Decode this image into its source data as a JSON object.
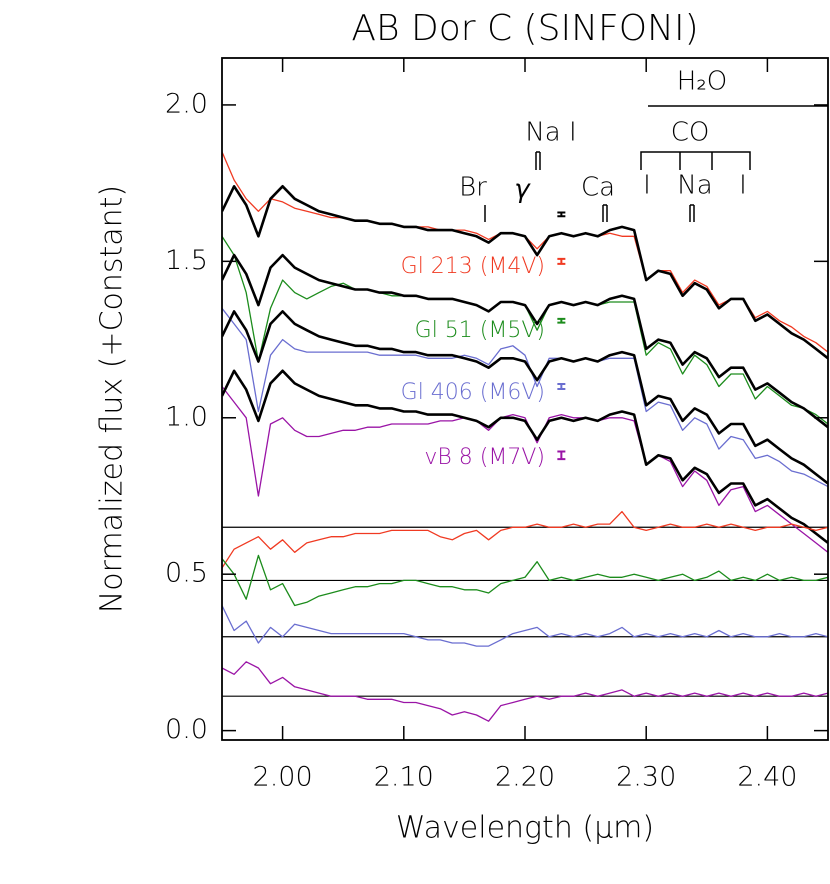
{
  "chart_data": {
    "type": "line",
    "title": "AB Dor C (SINFONI)",
    "x_label": "Wavelength (μm)",
    "y_label": "Normalized flux (+Constant)",
    "xlim": [
      1.95,
      2.45
    ],
    "ylim": [
      -0.03,
      2.15
    ],
    "xticks": [
      {
        "value": 2.0,
        "label": "2.00"
      },
      {
        "value": 2.1,
        "label": "2.10"
      },
      {
        "value": 2.2,
        "label": "2.20"
      },
      {
        "value": 2.3,
        "label": "2.30"
      },
      {
        "value": 2.4,
        "label": "2.40"
      }
    ],
    "yticks": [
      {
        "value": 0,
        "label": "0.0"
      },
      {
        "value": 0.5,
        "label": "0.5"
      },
      {
        "value": 1,
        "label": "1.0"
      },
      {
        "value": 1.5,
        "label": "1.5"
      },
      {
        "value": 2,
        "label": "2.0"
      }
    ],
    "x": [
      1.95,
      1.96,
      1.97,
      1.98,
      1.99,
      2.0,
      2.01,
      2.02,
      2.03,
      2.04,
      2.05,
      2.06,
      2.07,
      2.08,
      2.09,
      2.1,
      2.11,
      2.12,
      2.13,
      2.14,
      2.15,
      2.16,
      2.17,
      2.18,
      2.19,
      2.2,
      2.21,
      2.22,
      2.23,
      2.24,
      2.25,
      2.26,
      2.27,
      2.28,
      2.29,
      2.3,
      2.31,
      2.32,
      2.33,
      2.34,
      2.35,
      2.36,
      2.37,
      2.38,
      2.39,
      2.4,
      2.41,
      2.42,
      2.43,
      2.44,
      2.45
    ],
    "series": [
      {
        "name": "Gl 213 (M4V)",
        "color": "#f03a22",
        "values": [
          1.85,
          1.76,
          1.7,
          1.66,
          1.7,
          1.69,
          1.67,
          1.66,
          1.65,
          1.64,
          1.64,
          1.63,
          1.63,
          1.62,
          1.62,
          1.61,
          1.61,
          1.61,
          1.6,
          1.6,
          1.6,
          1.59,
          1.57,
          1.59,
          1.59,
          1.58,
          1.54,
          1.58,
          1.59,
          1.58,
          1.59,
          1.58,
          1.59,
          1.58,
          1.58,
          1.44,
          1.47,
          1.47,
          1.4,
          1.44,
          1.42,
          1.36,
          1.38,
          1.38,
          1.32,
          1.34,
          1.31,
          1.29,
          1.26,
          1.24,
          1.21
        ]
      },
      {
        "name": "Gl 51 (M5V)",
        "color": "#1c8c1c",
        "values": [
          1.58,
          1.52,
          1.4,
          1.18,
          1.35,
          1.44,
          1.4,
          1.38,
          1.4,
          1.42,
          1.43,
          1.41,
          1.41,
          1.4,
          1.39,
          1.39,
          1.39,
          1.38,
          1.38,
          1.38,
          1.37,
          1.36,
          1.34,
          1.37,
          1.37,
          1.36,
          1.28,
          1.36,
          1.37,
          1.36,
          1.37,
          1.36,
          1.37,
          1.37,
          1.37,
          1.2,
          1.24,
          1.22,
          1.14,
          1.2,
          1.17,
          1.1,
          1.14,
          1.14,
          1.06,
          1.1,
          1.07,
          1.04,
          1.03,
          1.01,
          0.98
        ]
      },
      {
        "name": "Gl 406 (M6V)",
        "color": "#6a6ed0",
        "values": [
          1.35,
          1.3,
          1.25,
          1.02,
          1.2,
          1.25,
          1.22,
          1.21,
          1.21,
          1.21,
          1.21,
          1.21,
          1.21,
          1.2,
          1.2,
          1.2,
          1.2,
          1.19,
          1.19,
          1.19,
          1.2,
          1.19,
          1.17,
          1.22,
          1.23,
          1.2,
          1.1,
          1.19,
          1.19,
          1.18,
          1.19,
          1.18,
          1.19,
          1.19,
          1.19,
          1.02,
          1.05,
          1.04,
          0.96,
          1.0,
          0.98,
          0.9,
          0.94,
          0.93,
          0.87,
          0.88,
          0.86,
          0.83,
          0.82,
          0.8,
          0.78
        ]
      },
      {
        "name": "vB 8 (M7V)",
        "color": "#9a14a6",
        "values": [
          1.1,
          1.05,
          1.0,
          0.75,
          0.98,
          1.0,
          0.96,
          0.94,
          0.94,
          0.95,
          0.96,
          0.96,
          0.97,
          0.97,
          0.98,
          0.98,
          0.98,
          0.98,
          0.99,
          0.99,
          1.0,
          0.99,
          0.96,
          1.0,
          1.01,
          1.0,
          0.92,
          1.0,
          1.01,
          1.0,
          1.0,
          0.99,
          1.0,
          1.0,
          0.99,
          0.85,
          0.88,
          0.86,
          0.78,
          0.83,
          0.8,
          0.72,
          0.77,
          0.78,
          0.7,
          0.72,
          0.69,
          0.66,
          0.63,
          0.6,
          0.57
        ]
      },
      {
        "color": "#000000",
        "values": [
          1.66,
          1.74,
          1.68,
          1.58,
          1.7,
          1.74,
          1.7,
          1.68,
          1.66,
          1.65,
          1.64,
          1.63,
          1.63,
          1.62,
          1.62,
          1.61,
          1.61,
          1.6,
          1.6,
          1.6,
          1.59,
          1.58,
          1.56,
          1.59,
          1.59,
          1.58,
          1.52,
          1.58,
          1.59,
          1.58,
          1.59,
          1.58,
          1.6,
          1.61,
          1.6,
          1.44,
          1.47,
          1.46,
          1.39,
          1.43,
          1.41,
          1.35,
          1.38,
          1.38,
          1.31,
          1.33,
          1.3,
          1.27,
          1.25,
          1.22,
          1.19
        ]
      },
      {
        "color": "#000000",
        "values": [
          1.44,
          1.52,
          1.46,
          1.36,
          1.48,
          1.52,
          1.48,
          1.46,
          1.44,
          1.43,
          1.42,
          1.41,
          1.41,
          1.4,
          1.4,
          1.39,
          1.39,
          1.38,
          1.38,
          1.38,
          1.37,
          1.36,
          1.34,
          1.37,
          1.37,
          1.36,
          1.3,
          1.36,
          1.37,
          1.36,
          1.37,
          1.36,
          1.38,
          1.39,
          1.38,
          1.22,
          1.25,
          1.24,
          1.17,
          1.21,
          1.19,
          1.13,
          1.16,
          1.16,
          1.09,
          1.11,
          1.08,
          1.05,
          1.03,
          1.0,
          0.97
        ]
      },
      {
        "color": "#000000",
        "values": [
          1.26,
          1.34,
          1.28,
          1.18,
          1.3,
          1.34,
          1.3,
          1.28,
          1.26,
          1.25,
          1.24,
          1.23,
          1.23,
          1.22,
          1.22,
          1.21,
          1.21,
          1.2,
          1.2,
          1.2,
          1.19,
          1.18,
          1.16,
          1.19,
          1.19,
          1.18,
          1.12,
          1.18,
          1.19,
          1.18,
          1.19,
          1.18,
          1.2,
          1.21,
          1.2,
          1.04,
          1.07,
          1.06,
          0.99,
          1.03,
          1.01,
          0.95,
          0.98,
          0.98,
          0.91,
          0.93,
          0.9,
          0.87,
          0.85,
          0.82,
          0.79
        ]
      },
      {
        "color": "#000000",
        "values": [
          1.07,
          1.15,
          1.09,
          0.99,
          1.11,
          1.15,
          1.11,
          1.09,
          1.07,
          1.06,
          1.05,
          1.04,
          1.04,
          1.03,
          1.03,
          1.02,
          1.02,
          1.01,
          1.01,
          1.01,
          1.0,
          0.99,
          0.97,
          1.0,
          1.0,
          0.99,
          0.93,
          0.99,
          1.0,
          0.99,
          1.0,
          0.99,
          1.01,
          1.02,
          1.01,
          0.85,
          0.88,
          0.87,
          0.8,
          0.84,
          0.82,
          0.76,
          0.79,
          0.79,
          0.72,
          0.74,
          0.71,
          0.68,
          0.66,
          0.63,
          0.6
        ]
      },
      {
        "color": "#f03a22",
        "values": [
          0.52,
          0.58,
          0.6,
          0.62,
          0.58,
          0.61,
          0.57,
          0.6,
          0.61,
          0.62,
          0.62,
          0.63,
          0.63,
          0.63,
          0.64,
          0.64,
          0.64,
          0.64,
          0.62,
          0.61,
          0.63,
          0.64,
          0.61,
          0.64,
          0.65,
          0.65,
          0.66,
          0.65,
          0.65,
          0.66,
          0.65,
          0.66,
          0.66,
          0.7,
          0.65,
          0.64,
          0.65,
          0.66,
          0.65,
          0.65,
          0.66,
          0.65,
          0.66,
          0.65,
          0.64,
          0.65,
          0.65,
          0.66,
          0.65,
          0.64,
          0.65
        ]
      },
      {
        "color": "#1c8c1c",
        "values": [
          0.55,
          0.5,
          0.42,
          0.56,
          0.45,
          0.47,
          0.4,
          0.41,
          0.43,
          0.44,
          0.45,
          0.46,
          0.46,
          0.47,
          0.47,
          0.48,
          0.48,
          0.47,
          0.46,
          0.46,
          0.45,
          0.45,
          0.44,
          0.47,
          0.48,
          0.49,
          0.54,
          0.48,
          0.49,
          0.48,
          0.49,
          0.5,
          0.49,
          0.49,
          0.5,
          0.49,
          0.48,
          0.49,
          0.5,
          0.48,
          0.49,
          0.51,
          0.48,
          0.49,
          0.48,
          0.5,
          0.48,
          0.49,
          0.48,
          0.48,
          0.49
        ]
      },
      {
        "color": "#6a6ed0",
        "values": [
          0.4,
          0.32,
          0.35,
          0.28,
          0.33,
          0.3,
          0.34,
          0.33,
          0.32,
          0.31,
          0.31,
          0.31,
          0.31,
          0.31,
          0.31,
          0.31,
          0.3,
          0.29,
          0.29,
          0.28,
          0.28,
          0.27,
          0.27,
          0.29,
          0.31,
          0.32,
          0.33,
          0.3,
          0.31,
          0.3,
          0.31,
          0.3,
          0.31,
          0.33,
          0.3,
          0.31,
          0.3,
          0.31,
          0.3,
          0.31,
          0.3,
          0.32,
          0.3,
          0.31,
          0.3,
          0.3,
          0.31,
          0.3,
          0.3,
          0.31,
          0.3
        ]
      },
      {
        "color": "#9a14a6",
        "values": [
          0.2,
          0.18,
          0.22,
          0.2,
          0.15,
          0.17,
          0.14,
          0.13,
          0.12,
          0.11,
          0.11,
          0.11,
          0.1,
          0.1,
          0.1,
          0.09,
          0.09,
          0.08,
          0.07,
          0.05,
          0.06,
          0.05,
          0.03,
          0.08,
          0.09,
          0.1,
          0.11,
          0.1,
          0.11,
          0.11,
          0.12,
          0.11,
          0.12,
          0.13,
          0.11,
          0.12,
          0.11,
          0.12,
          0.11,
          0.12,
          0.11,
          0.12,
          0.11,
          0.12,
          0.11,
          0.12,
          0.11,
          0.11,
          0.12,
          0.11,
          0.12
        ]
      }
    ],
    "hlines": [
      0.65,
      0.48,
      0.3,
      0.11
    ],
    "error_bars": {
      "x": 2.23,
      "values": [
        1.65,
        1.5,
        1.31,
        1.1,
        0.88
      ],
      "errors": [
        0.006,
        0.008,
        0.006,
        0.008,
        0.012
      ],
      "colors": [
        "#000000",
        "#f03a22",
        "#1c8c1c",
        "#6a6ed0",
        "#9a14a6"
      ]
    },
    "annotations": [
      "H₂O",
      "CO",
      "Na I",
      "Br",
      "γ",
      "Ca",
      "I",
      "Na",
      "I"
    ]
  }
}
